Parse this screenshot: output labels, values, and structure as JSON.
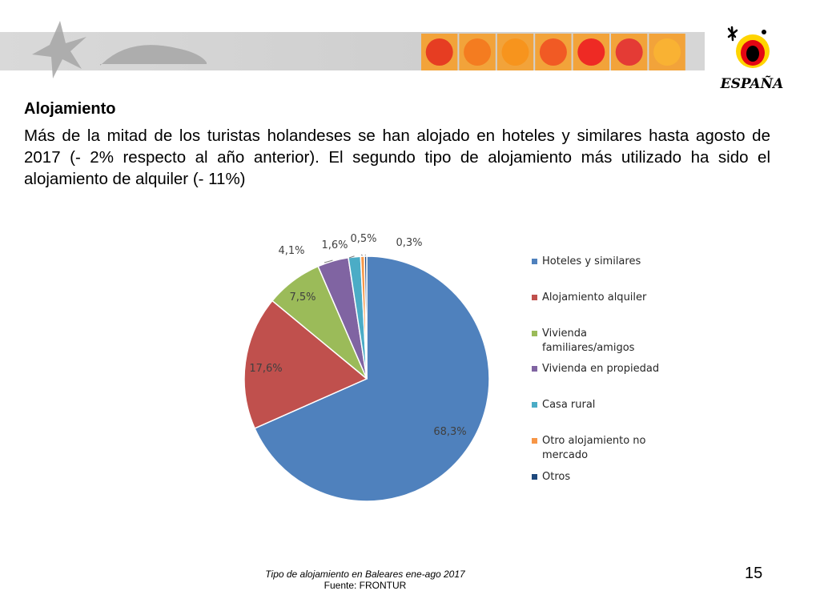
{
  "heading": "Alojamiento",
  "body": "Más de la mitad de los turistas holandeses se han alojado en hoteles y similares hasta agosto de 2017 (- 2% respecto al año anterior). El segundo tipo de alojamiento más utilizado ha sido el alojamiento de alquiler (- 11%)",
  "logo": {
    "text": "ESPAÑA",
    "colors": {
      "red": "#e30613",
      "yellow": "#ffd400",
      "black": "#000000"
    }
  },
  "banner": {
    "strip_colors": [
      "#e63d22",
      "#f47c20",
      "#f7941d",
      "#f15a24",
      "#ee2a24",
      "#e43b35",
      "#f9b233"
    ]
  },
  "caption": {
    "title": "Tipo de alojamiento en Baleares ene-ago 2017",
    "source": "Fuente: FRONTUR"
  },
  "page_number": "15",
  "chart_data": {
    "type": "pie",
    "title": "",
    "categories": [
      "Hoteles y similares",
      "Alojamiento alquiler",
      "Vivienda familiares/amigos",
      "Vivienda en propiedad",
      "Casa rural",
      "Otro alojamiento no mercado",
      "Otros"
    ],
    "values": [
      68.3,
      17.6,
      7.5,
      4.1,
      1.6,
      0.5,
      0.3
    ],
    "labels": [
      "68,3%",
      "17,6%",
      "7,5%",
      "4,1%",
      "1,6%",
      "0,5%",
      "0,3%"
    ],
    "colors": [
      "#4f81bd",
      "#c0504d",
      "#9bbb59",
      "#8064a2",
      "#4bacc6",
      "#f79646",
      "#1f497d"
    ],
    "legend_position": "right"
  }
}
